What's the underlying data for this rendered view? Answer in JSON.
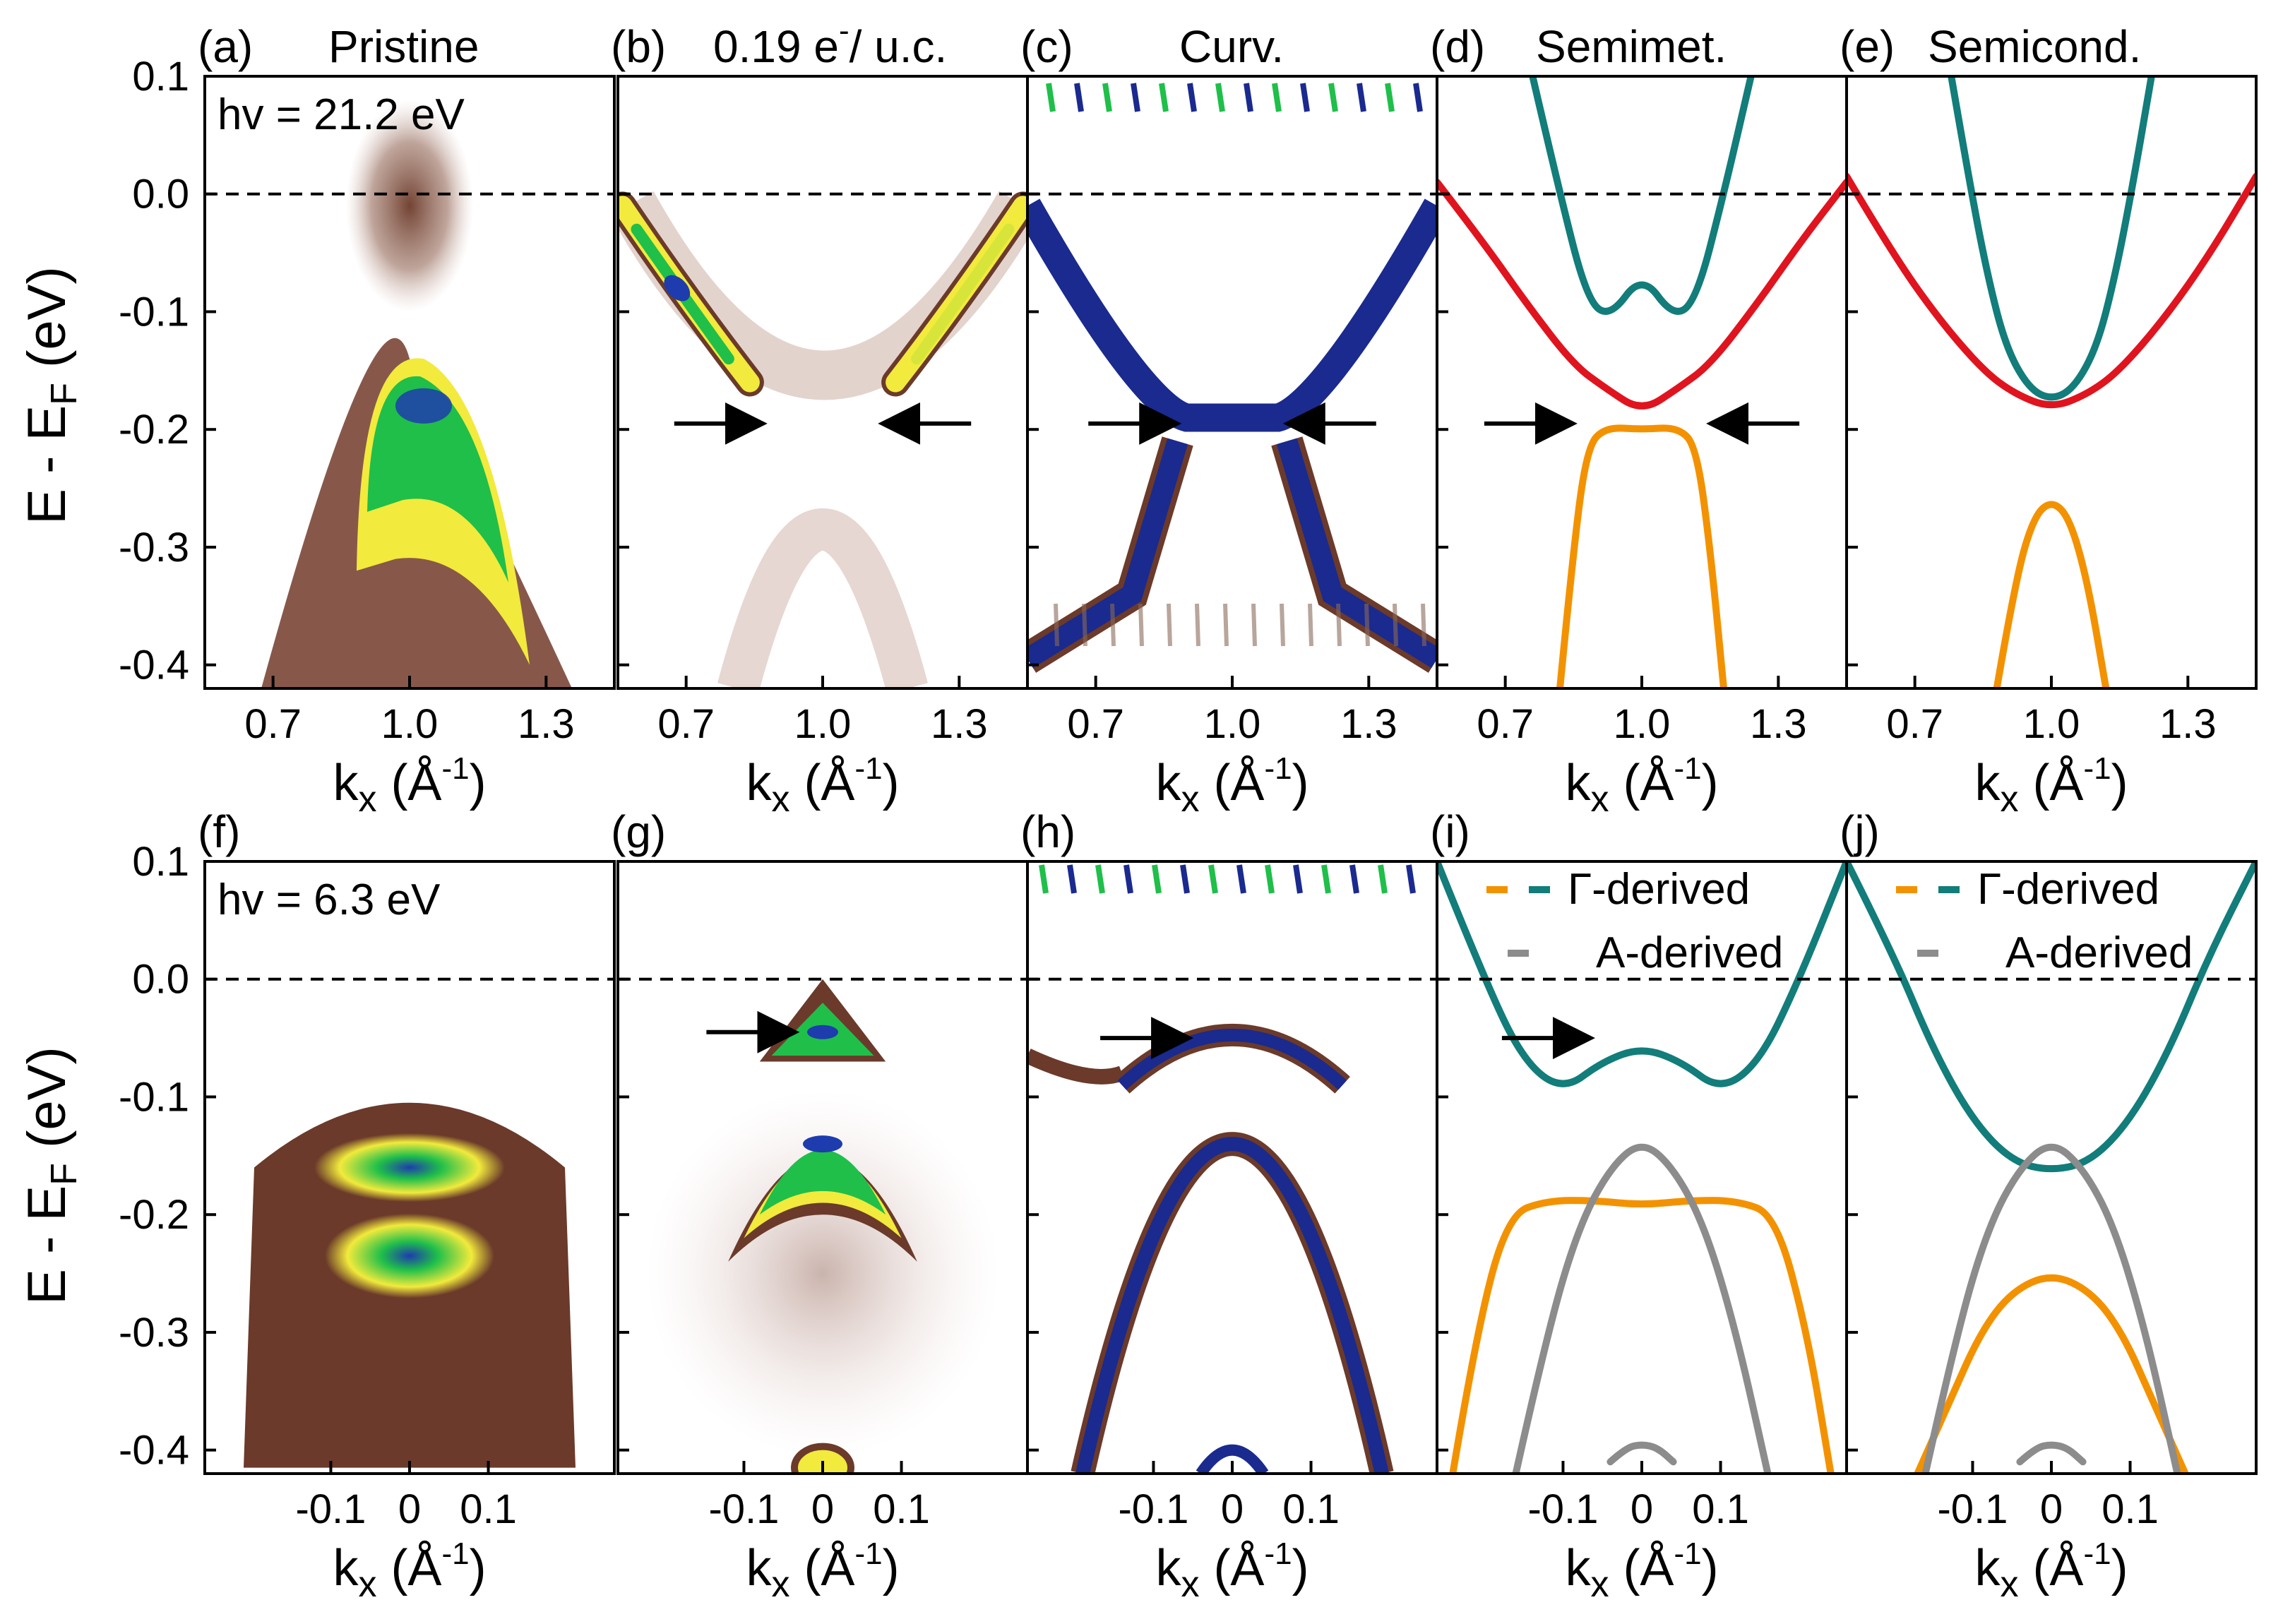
{
  "figure": {
    "ylabel_main": "E - E",
    "ylabel_sub": "F",
    "ylabel_suffix": " (eV)",
    "xlabel_main": "k",
    "xlabel_sub": "x",
    "xlabel_unit_open": " (Å",
    "xlabel_unit_sup": "-1",
    "xlabel_unit_close": ")",
    "fermi_line_color": "#000000"
  },
  "colors": {
    "red": "#e0141e",
    "teal": "#127d7a",
    "orange": "#f39200",
    "gray": "#8c8c8c",
    "arpes_low": "#6b3a2a",
    "arpes_mid": "#f2ea3c",
    "arpes_hi": "#1fbf4a",
    "arpes_peak": "#1e3cae"
  },
  "chart_data": [
    {
      "id": "a",
      "type": "heatmap",
      "label": "(a)",
      "title": "Pristine",
      "annotation": "hv = 21.2 eV",
      "xlim": [
        0.55,
        1.45
      ],
      "ylim": [
        -0.42,
        0.1
      ],
      "xticks": [
        0.7,
        1.0,
        1.3
      ],
      "xtick_labels": [
        "0.7",
        "1.0",
        "1.3"
      ],
      "yticks": [
        0.1,
        0.0,
        -0.1,
        -0.2,
        -0.3,
        -0.4
      ],
      "ytick_labels": [
        "0.1",
        "0.0",
        "-0.1",
        "-0.2",
        "-0.3",
        "-0.4"
      ],
      "fermi_level": 0.0
    },
    {
      "id": "b",
      "type": "heatmap",
      "label": "(b)",
      "title": "0.19 e",
      "title_sup": "-",
      "title_tail": "/ u.c.",
      "xlim": [
        0.55,
        1.45
      ],
      "ylim": [
        -0.42,
        0.1
      ],
      "xticks": [
        0.7,
        1.0,
        1.3
      ],
      "xtick_labels": [
        "0.7",
        "1.0",
        "1.3"
      ],
      "fermi_level": 0.0,
      "arrows": [
        {
          "x": 0.86,
          "y": -0.195,
          "dir": "right"
        },
        {
          "x": 1.14,
          "y": -0.195,
          "dir": "left"
        }
      ]
    },
    {
      "id": "c",
      "type": "heatmap",
      "label": "(c)",
      "title": "Curv.",
      "xlim": [
        0.55,
        1.45
      ],
      "ylim": [
        -0.42,
        0.1
      ],
      "xticks": [
        0.7,
        1.0,
        1.3
      ],
      "xtick_labels": [
        "0.7",
        "1.0",
        "1.3"
      ],
      "fermi_level": 0.0,
      "arrows": [
        {
          "x": 0.87,
          "y": -0.195,
          "dir": "right"
        },
        {
          "x": 1.13,
          "y": -0.195,
          "dir": "left"
        }
      ]
    },
    {
      "id": "d",
      "type": "line",
      "label": "(d)",
      "title": "Semimet.",
      "xlim": [
        0.55,
        1.45
      ],
      "ylim": [
        -0.42,
        0.1
      ],
      "xticks": [
        0.7,
        1.0,
        1.3
      ],
      "xtick_labels": [
        "0.7",
        "1.0",
        "1.3"
      ],
      "fermi_level": 0.0,
      "series": [
        {
          "name": "red band",
          "color": "red",
          "x": [
            0.55,
            0.65,
            0.75,
            0.85,
            0.92,
            1.0,
            1.08,
            1.15,
            1.25,
            1.35,
            1.45
          ],
          "y": [
            0.01,
            -0.04,
            -0.095,
            -0.145,
            -0.165,
            -0.185,
            -0.165,
            -0.145,
            -0.095,
            -0.04,
            0.01
          ]
        },
        {
          "name": "teal band",
          "color": "teal",
          "x": [
            0.76,
            0.82,
            0.88,
            0.93,
            1.0,
            1.07,
            1.12,
            1.18,
            1.24
          ],
          "y": [
            0.1,
            0.0,
            -0.09,
            -0.105,
            -0.068,
            -0.105,
            -0.09,
            0.0,
            0.1
          ]
        },
        {
          "name": "orange band",
          "color": "orange",
          "x": [
            0.82,
            0.85,
            0.88,
            0.92,
            1.0,
            1.08,
            1.12,
            1.15,
            1.18
          ],
          "y": [
            -0.42,
            -0.3,
            -0.215,
            -0.198,
            -0.2,
            -0.198,
            -0.215,
            -0.3,
            -0.42
          ]
        }
      ],
      "arrows": [
        {
          "x": 0.84,
          "y": -0.195,
          "dir": "right"
        },
        {
          "x": 1.16,
          "y": -0.195,
          "dir": "left"
        }
      ]
    },
    {
      "id": "e",
      "type": "line",
      "label": "(e)",
      "title": "Semicond.",
      "xlim": [
        0.55,
        1.45
      ],
      "ylim": [
        -0.42,
        0.1
      ],
      "xticks": [
        0.7,
        1.0,
        1.3
      ],
      "xtick_labels": [
        "0.7",
        "1.0",
        "1.3"
      ],
      "fermi_level": 0.0,
      "series": [
        {
          "name": "red band",
          "color": "red",
          "x": [
            0.55,
            0.65,
            0.75,
            0.85,
            0.92,
            1.0,
            1.08,
            1.15,
            1.25,
            1.35,
            1.45
          ],
          "y": [
            0.015,
            -0.05,
            -0.105,
            -0.15,
            -0.17,
            -0.182,
            -0.17,
            -0.15,
            -0.105,
            -0.05,
            0.015
          ]
        },
        {
          "name": "teal band",
          "color": "teal",
          "x": [
            0.78,
            0.82,
            0.86,
            0.9,
            0.95,
            1.0,
            1.05,
            1.1,
            1.14,
            1.18,
            1.22
          ],
          "y": [
            0.1,
            0.01,
            -0.07,
            -0.13,
            -0.165,
            -0.175,
            -0.165,
            -0.13,
            -0.07,
            0.01,
            0.1
          ]
        },
        {
          "name": "orange band",
          "color": "orange",
          "x": [
            0.88,
            0.92,
            0.96,
            1.0,
            1.04,
            1.08,
            1.12
          ],
          "y": [
            -0.42,
            -0.33,
            -0.275,
            -0.26,
            -0.275,
            -0.33,
            -0.42
          ]
        }
      ]
    },
    {
      "id": "f",
      "type": "heatmap",
      "label": "(f)",
      "annotation": "hv = 6.3 eV",
      "xlim": [
        -0.26,
        0.26
      ],
      "ylim": [
        -0.42,
        0.1
      ],
      "xticks": [
        -0.1,
        0.0,
        0.1
      ],
      "xtick_labels": [
        "-0.1",
        "0",
        "0.1"
      ],
      "yticks": [
        0.1,
        0.0,
        -0.1,
        -0.2,
        -0.3,
        -0.4
      ],
      "ytick_labels": [
        "0.1",
        "0.0",
        "-0.1",
        "-0.2",
        "-0.3",
        "-0.4"
      ],
      "fermi_level": 0.0
    },
    {
      "id": "g",
      "type": "heatmap",
      "label": "(g)",
      "xlim": [
        -0.26,
        0.26
      ],
      "ylim": [
        -0.42,
        0.1
      ],
      "xticks": [
        -0.1,
        0.0,
        0.1
      ],
      "xtick_labels": [
        "-0.1",
        "0",
        "0.1"
      ],
      "fermi_level": 0.0,
      "arrows": [
        {
          "x": -0.04,
          "y": -0.045,
          "dir": "right"
        }
      ]
    },
    {
      "id": "h",
      "type": "heatmap",
      "label": "(h)",
      "xlim": [
        -0.26,
        0.26
      ],
      "ylim": [
        -0.42,
        0.1
      ],
      "xticks": [
        -0.1,
        0.0,
        0.1
      ],
      "xtick_labels": [
        "-0.1",
        "0",
        "0.1"
      ],
      "fermi_level": 0.0,
      "arrows": [
        {
          "x": -0.06,
          "y": -0.05,
          "dir": "right"
        }
      ]
    },
    {
      "id": "i",
      "type": "line",
      "label": "(i)",
      "xlim": [
        -0.26,
        0.26
      ],
      "ylim": [
        -0.42,
        0.1
      ],
      "xticks": [
        -0.1,
        0.0,
        0.1
      ],
      "xtick_labels": [
        "-0.1",
        "0",
        "0.1"
      ],
      "fermi_level": 0.0,
      "legend": [
        {
          "label": "Γ-derived",
          "colors": [
            "orange",
            "teal"
          ]
        },
        {
          "label": "A-derived",
          "colors": [
            "gray"
          ]
        }
      ],
      "series": [
        {
          "name": "teal band",
          "color": "teal",
          "x": [
            -0.26,
            -0.2,
            -0.15,
            -0.1,
            -0.05,
            0.0,
            0.05,
            0.1,
            0.15,
            0.2,
            0.26
          ],
          "y": [
            0.1,
            0.0,
            -0.07,
            -0.095,
            -0.07,
            -0.058,
            -0.07,
            -0.095,
            -0.07,
            0.0,
            0.1
          ]
        },
        {
          "name": "orange band",
          "color": "orange",
          "x": [
            -0.24,
            -0.21,
            -0.17,
            -0.12,
            -0.06,
            0.0,
            0.06,
            0.12,
            0.17,
            0.21,
            0.24
          ],
          "y": [
            -0.42,
            -0.3,
            -0.2,
            -0.188,
            -0.188,
            -0.192,
            -0.188,
            -0.188,
            -0.2,
            -0.3,
            -0.42
          ]
        },
        {
          "name": "gray band",
          "color": "gray",
          "x": [
            -0.16,
            -0.12,
            -0.08,
            -0.04,
            0.0,
            0.04,
            0.08,
            0.12,
            0.16
          ],
          "y": [
            -0.42,
            -0.3,
            -0.21,
            -0.16,
            -0.137,
            -0.16,
            -0.21,
            -0.3,
            -0.42
          ]
        },
        {
          "name": "gray band lower",
          "color": "gray",
          "x": [
            -0.04,
            -0.02,
            0.0,
            0.02,
            0.04
          ],
          "y": [
            -0.41,
            -0.398,
            -0.395,
            -0.398,
            -0.41
          ]
        }
      ],
      "arrows": [
        {
          "x": -0.07,
          "y": -0.05,
          "dir": "right"
        }
      ]
    },
    {
      "id": "j",
      "type": "line",
      "label": "(j)",
      "xlim": [
        -0.26,
        0.26
      ],
      "ylim": [
        -0.42,
        0.1
      ],
      "xticks": [
        -0.1,
        0.0,
        0.1
      ],
      "xtick_labels": [
        "-0.1",
        "0",
        "0.1"
      ],
      "fermi_level": 0.0,
      "legend": [
        {
          "label": "Γ-derived",
          "colors": [
            "orange",
            "teal"
          ]
        },
        {
          "label": "A-derived",
          "colors": [
            "gray"
          ]
        }
      ],
      "series": [
        {
          "name": "teal band",
          "color": "teal",
          "x": [
            -0.26,
            -0.2,
            -0.15,
            -0.1,
            -0.05,
            0.0,
            0.05,
            0.1,
            0.15,
            0.2,
            0.26
          ],
          "y": [
            0.1,
            0.02,
            -0.06,
            -0.12,
            -0.155,
            -0.163,
            -0.155,
            -0.12,
            -0.06,
            0.02,
            0.1
          ]
        },
        {
          "name": "orange band",
          "color": "orange",
          "x": [
            -0.17,
            -0.13,
            -0.09,
            -0.05,
            0.0,
            0.05,
            0.09,
            0.13,
            0.17
          ],
          "y": [
            -0.42,
            -0.36,
            -0.3,
            -0.265,
            -0.25,
            -0.265,
            -0.3,
            -0.36,
            -0.42
          ]
        },
        {
          "name": "gray band",
          "color": "gray",
          "x": [
            -0.16,
            -0.12,
            -0.08,
            -0.04,
            0.0,
            0.04,
            0.08,
            0.12,
            0.16
          ],
          "y": [
            -0.42,
            -0.3,
            -0.21,
            -0.16,
            -0.137,
            -0.16,
            -0.21,
            -0.3,
            -0.42
          ]
        },
        {
          "name": "gray band lower",
          "color": "gray",
          "x": [
            -0.04,
            -0.02,
            0.0,
            0.02,
            0.04
          ],
          "y": [
            -0.41,
            -0.398,
            -0.395,
            -0.398,
            -0.41
          ]
        }
      ]
    }
  ]
}
